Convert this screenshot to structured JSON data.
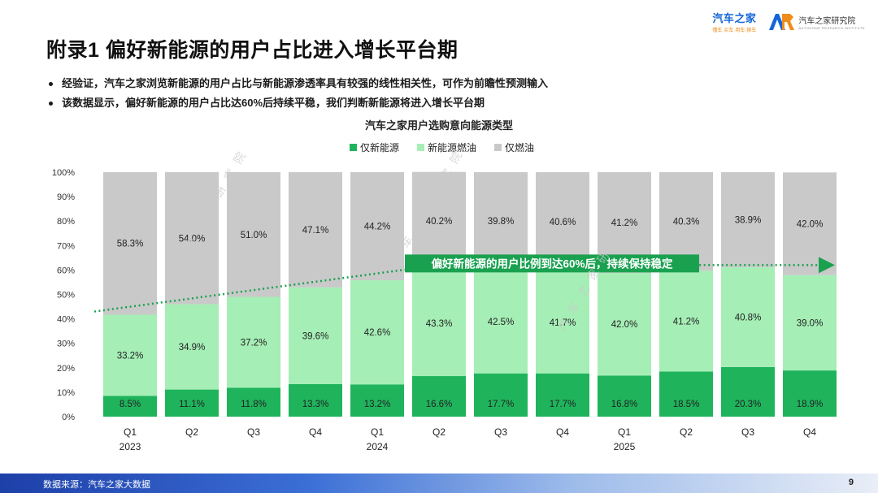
{
  "logos": {
    "brand": "汽车之家",
    "brand_tag": "懂车·买车·用车·换车",
    "institute": "汽车之家研究院",
    "institute_en": "AUTOHOME RESEARCH INSTITUTE"
  },
  "title": "附录1 偏好新能源的用户占比进入增长平台期",
  "bullets": [
    "经验证，汽车之家浏览新能源的用户占比与新能源渗透率具有较强的线性相关性，可作为前瞻性预测输入",
    "该数据显示，偏好新能源的用户占比达60%后持续平稳，我们判断新能源将进入增长平台期"
  ],
  "watermarks": [
    "车之家研究院",
    "汽车之家研究院",
    "汽车之家研"
  ],
  "chart_data": {
    "type": "bar",
    "stacked": true,
    "title": "汽车之家用户选购意向能源类型",
    "categories": [
      "Q1",
      "Q2",
      "Q3",
      "Q4",
      "Q1",
      "Q2",
      "Q3",
      "Q4",
      "Q1",
      "Q2",
      "Q3",
      "Q4"
    ],
    "year_labels": [
      {
        "index": 0,
        "label": "2023"
      },
      {
        "index": 4,
        "label": "2024"
      },
      {
        "index": 8,
        "label": "2025"
      }
    ],
    "y_ticks": [
      "0%",
      "10%",
      "20%",
      "30%",
      "40%",
      "50%",
      "60%",
      "70%",
      "80%",
      "90%",
      "100%"
    ],
    "ylim": [
      0,
      100
    ],
    "series": [
      {
        "name": "仅新能源",
        "color": "#1fb45c",
        "values": [
          8.5,
          11.1,
          11.8,
          13.3,
          13.2,
          16.6,
          17.7,
          17.7,
          16.8,
          18.5,
          20.3,
          18.9
        ],
        "labels": [
          "8.5%",
          "11.1%",
          "11.8%",
          "13.3%",
          "13.2%",
          "16.6%",
          "17.7%",
          "17.7%",
          "16.8%",
          "18.5%",
          "20.3%",
          "18.9%"
        ]
      },
      {
        "name": "新能源燃油",
        "color": "#a5eeb6",
        "values": [
          33.2,
          34.9,
          37.2,
          39.6,
          42.6,
          43.3,
          42.5,
          41.7,
          42.0,
          41.2,
          40.8,
          39.0
        ],
        "labels": [
          "33.2%",
          "34.9%",
          "37.2%",
          "39.6%",
          "42.6%",
          "43.3%",
          "42.5%",
          "41.7%",
          "42.0%",
          "41.2%",
          "40.8%",
          "39.0%"
        ]
      },
      {
        "name": "仅燃油",
        "color": "#c9c9c9",
        "values": [
          58.3,
          54.0,
          51.0,
          47.1,
          44.2,
          40.2,
          39.8,
          40.6,
          41.2,
          40.3,
          38.9,
          42.0
        ],
        "labels": [
          "58.3%",
          "54.0%",
          "51.0%",
          "47.1%",
          "44.2%",
          "40.2%",
          "39.8%",
          "40.6%",
          "41.2%",
          "40.3%",
          "38.9%",
          "42.0%"
        ]
      }
    ],
    "trend_line": [
      {
        "category_index": 0,
        "value": 43
      },
      {
        "category_index": 5,
        "value": 62
      },
      {
        "category_index": 11,
        "value": 62
      }
    ],
    "annotation": "偏好新能源的用户比例到达60%后，持续保持稳定",
    "annotation_color": "#1aa150",
    "legend_position": "top"
  },
  "footer": {
    "source": "数据来源：汽车之家大数据",
    "page": "9"
  }
}
